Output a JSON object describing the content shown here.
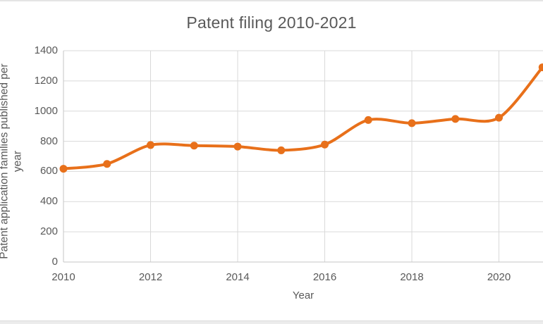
{
  "window": {
    "top_border_color": "#e4e4e4",
    "bottom_bar_color": "#ececec",
    "background": "#ffffff"
  },
  "colors": {
    "text": "#595959",
    "gridline": "#d9d9d9",
    "axis_line": "#c6c6c6",
    "series_orange": "#E8701A"
  },
  "chart_data": {
    "type": "line",
    "title": "Patent filing 2010-2021",
    "xlabel": "Year",
    "ylabel": "Patent application families published per year",
    "ylabel_lines": [
      "Patent application families published per",
      "year"
    ],
    "x": [
      2010,
      2011,
      2012,
      2013,
      2014,
      2015,
      2016,
      2017,
      2018,
      2019,
      2020,
      2021
    ],
    "values": [
      618,
      650,
      775,
      771,
      765,
      740,
      778,
      941,
      920,
      948,
      956,
      1290
    ],
    "xticks": [
      2010,
      2012,
      2014,
      2016,
      2018,
      2020
    ],
    "yticks": [
      0,
      200,
      400,
      600,
      800,
      1000,
      1200,
      1400
    ],
    "ylim": [
      0,
      1400
    ],
    "xlim": [
      2010,
      2021
    ],
    "grid": true,
    "legend": "none",
    "marker": "circle",
    "smoothed": true,
    "line_color": "#E8701A",
    "right_edge_clipped": true
  }
}
